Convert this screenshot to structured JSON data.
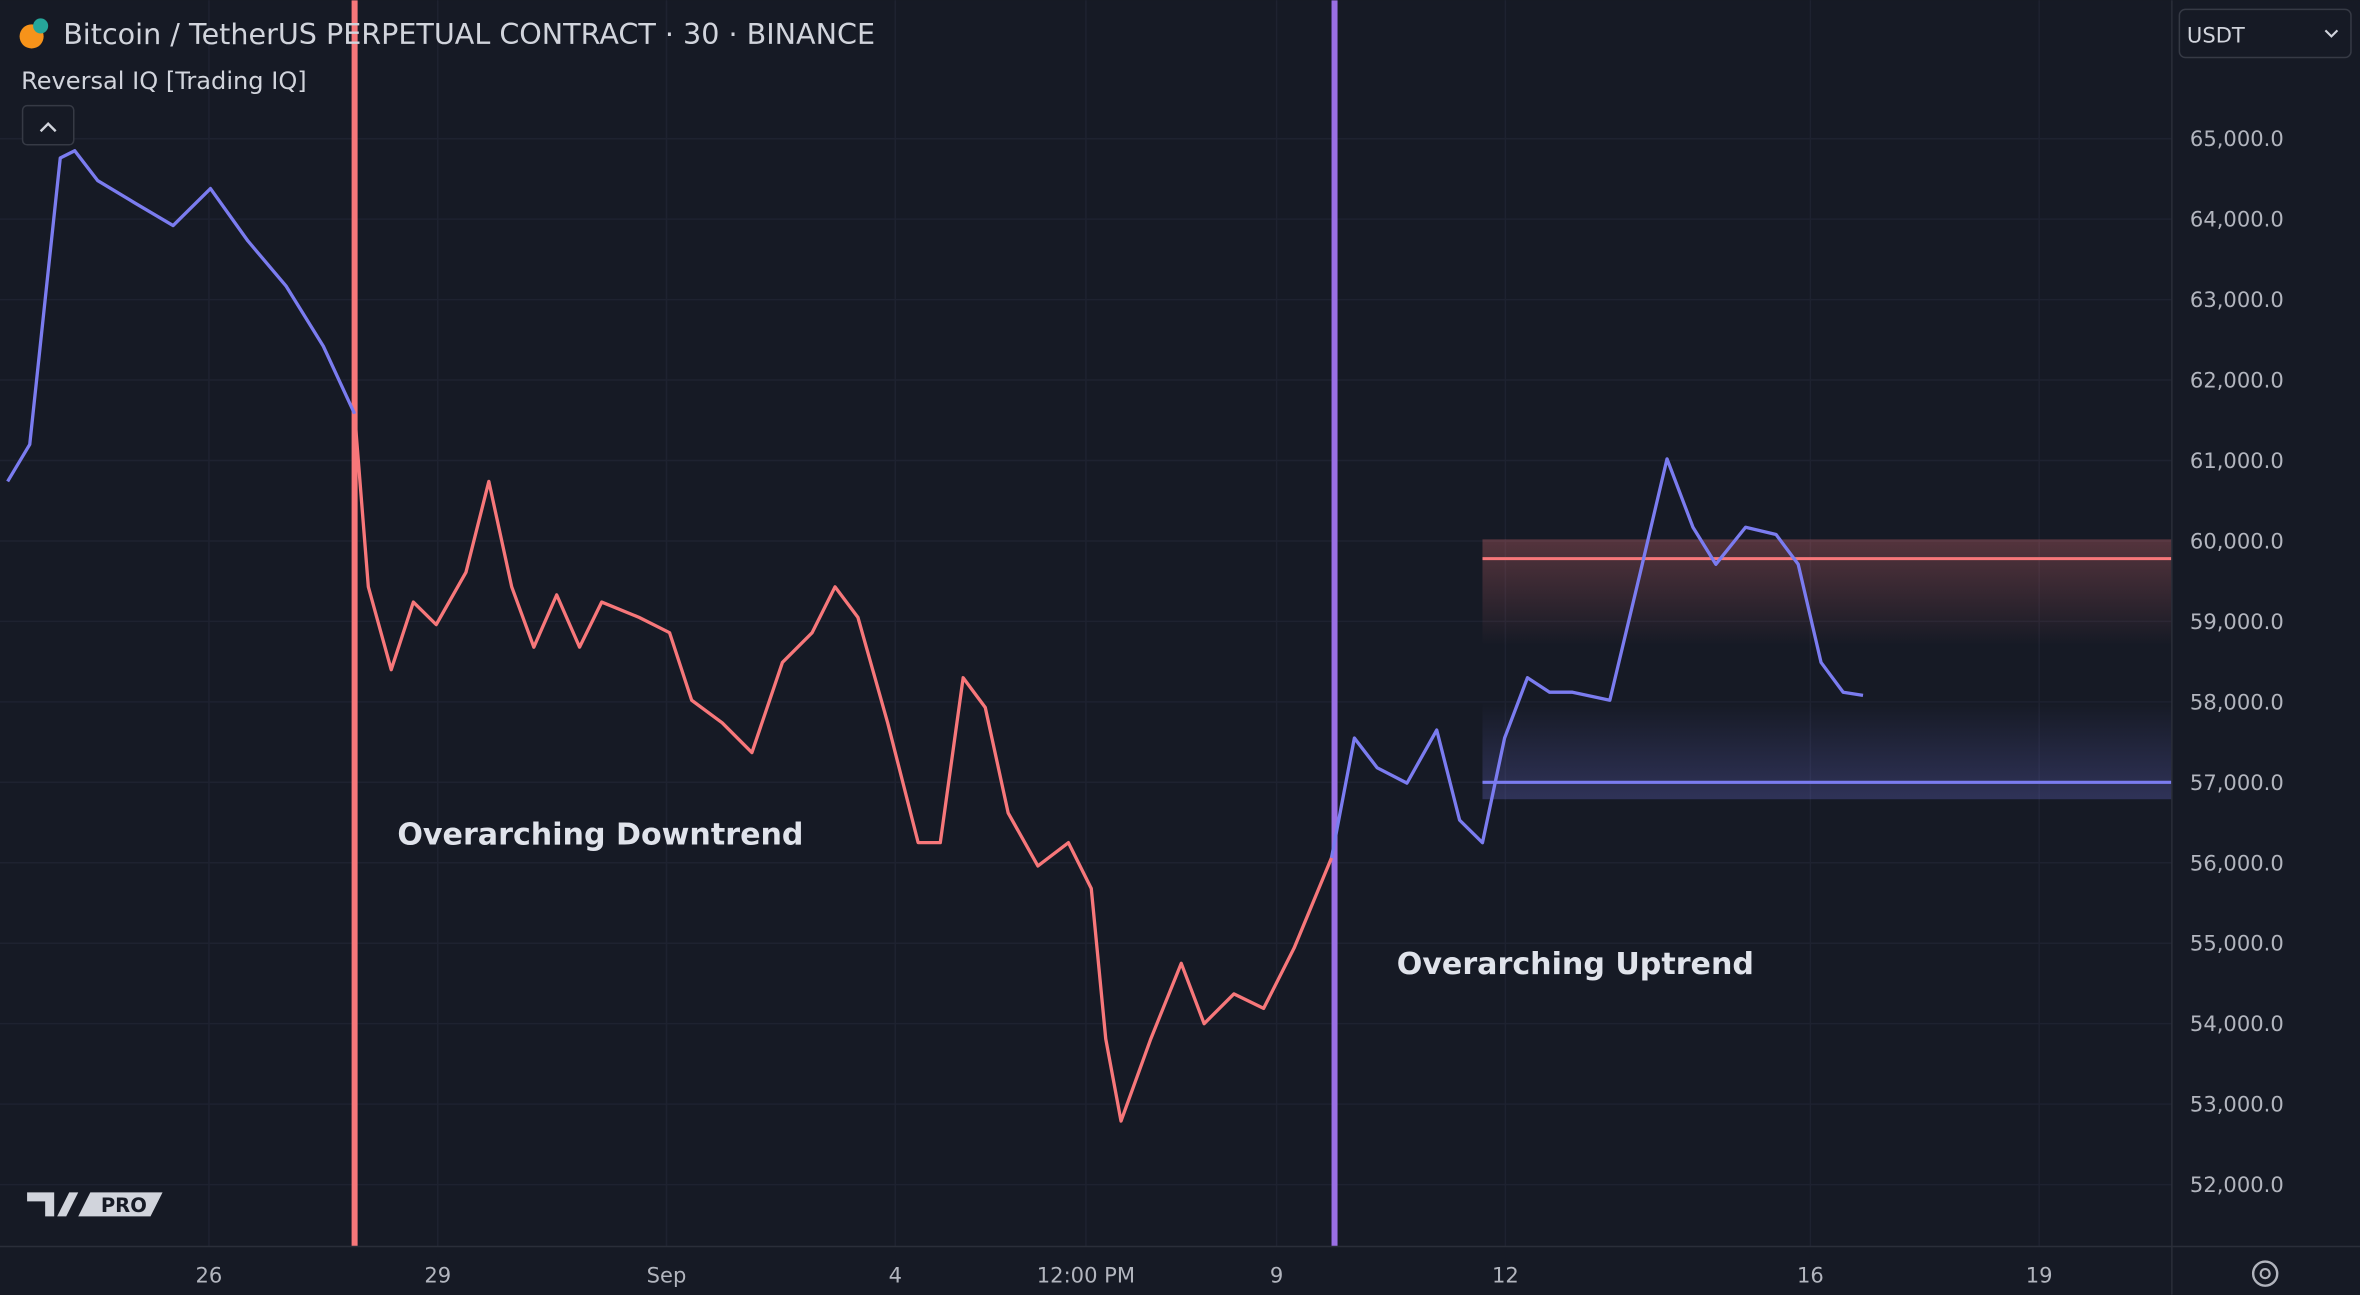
{
  "header": {
    "title": "Bitcoin / TetherUS PERPETUAL CONTRACT · 30 · BINANCE",
    "indicator": "Reversal IQ [Trading IQ]",
    "currency": "USDT",
    "badge": "PRO"
  },
  "chart_data": {
    "type": "line",
    "annotations": [
      "Overarching Downtrend",
      "Overarching Uptrend"
    ],
    "x": [
      23.36,
      23.65,
      23.85,
      24.05,
      24.24,
      24.54,
      25.03,
      25.53,
      26.02,
      26.51,
      27.01,
      27.5,
      27.91,
      28.09,
      28.39,
      28.68,
      28.98,
      29.37,
      29.67,
      29.97,
      30.26,
      30.56,
      30.86,
      31.15,
      31.64,
      32.04,
      32.33,
      32.73,
      33.12,
      33.52,
      33.91,
      34.21,
      34.51,
      34.9,
      35.3,
      35.59,
      35.89,
      36.18,
      36.48,
      36.87,
      37.27,
      37.57,
      37.76,
      37.96,
      38.35,
      38.75,
      39.05,
      39.44,
      39.83,
      40.23,
      40.72,
      41.02,
      41.32,
      41.71,
      42.1,
      42.4,
      42.7,
      42.99,
      43.29,
      43.58,
      43.88,
      44.37,
      44.77,
      45.12,
      45.46,
      45.76,
      46.15,
      46.55,
      46.84,
      47.14,
      47.43,
      47.69
    ],
    "series": [
      {
        "color": "#7b7cf0",
        "values": [
          60740,
          61200,
          62980,
          64760,
          64850,
          64480,
          64200,
          63920,
          64380,
          63730,
          63170,
          62420,
          61580,
          null,
          null,
          null,
          null,
          null,
          null,
          null,
          null,
          null,
          null,
          null,
          null,
          null,
          null,
          null,
          null,
          null,
          null,
          null,
          null,
          null,
          null,
          null,
          null,
          null,
          null,
          null,
          null,
          null,
          null,
          null,
          null,
          null,
          null,
          null,
          null,
          null,
          56060,
          57550,
          57180,
          56990,
          57650,
          56530,
          56250,
          57550,
          58300,
          58120,
          58120,
          58020,
          59610,
          61020,
          60170,
          59710,
          60170,
          60080,
          59710,
          58490,
          58120,
          58080
        ]
      },
      {
        "color": "#f7777a",
        "values": [
          null,
          null,
          null,
          null,
          null,
          null,
          null,
          null,
          null,
          null,
          null,
          null,
          61580,
          59430,
          58400,
          59240,
          58960,
          59610,
          60740,
          59430,
          58680,
          59330,
          58680,
          59240,
          59050,
          58860,
          58020,
          57740,
          57370,
          58490,
          58860,
          59430,
          59050,
          57740,
          56250,
          56250,
          58300,
          57930,
          56620,
          55960,
          56250,
          55680,
          53810,
          52790,
          53810,
          54750,
          54000,
          54370,
          54190,
          54940,
          56060,
          null,
          null,
          null,
          null,
          null,
          null,
          null,
          null,
          null,
          null,
          null,
          null,
          null,
          null,
          null,
          null,
          null,
          null,
          null,
          null,
          null
        ]
      }
    ],
    "vlines": [
      {
        "x": 27.91,
        "color": "#f7777a"
      },
      {
        "x": 40.76,
        "color": "#9a6fe4"
      }
    ],
    "zones": [
      {
        "xstart": 42.7,
        "from": 60020,
        "to": 58700,
        "level": 59780,
        "color": "#f7777a"
      },
      {
        "xstart": 42.7,
        "from": 58000,
        "to": 56790,
        "level": 57000,
        "color": "#7b7cf0"
      }
    ],
    "xlim": [
      23.26,
      51.74
    ],
    "ylim": [
      51230,
      66720
    ],
    "xticks": [
      26,
      29,
      {
        "value": 32,
        "label": "Sep"
      },
      {
        "value": 35,
        "label": "4"
      },
      {
        "value": 37.5,
        "label": "12:00 PM"
      },
      {
        "value": 40,
        "label": "9"
      },
      {
        "value": 43,
        "label": "12"
      },
      {
        "value": 47,
        "label": "16"
      },
      {
        "value": 50,
        "label": "19"
      }
    ],
    "yticks": [
      {
        "value": 52000,
        "label": "52,000.0"
      },
      {
        "value": 53000,
        "label": "53,000.0"
      },
      {
        "value": 54000,
        "label": "54,000.0"
      },
      {
        "value": 55000,
        "label": "55,000.0"
      },
      {
        "value": 56000,
        "label": "56,000.0"
      },
      {
        "value": 57000,
        "label": "57,000.0"
      },
      {
        "value": 58000,
        "label": "58,000.0"
      },
      {
        "value": 59000,
        "label": "59,000.0"
      },
      {
        "value": 60000,
        "label": "60,000.0"
      },
      {
        "value": 61000,
        "label": "61,000.0"
      },
      {
        "value": 62000,
        "label": "62,000.0"
      },
      {
        "value": 63000,
        "label": "63,000.0"
      },
      {
        "value": 64000,
        "label": "64,000.0"
      },
      {
        "value": 65000,
        "label": "65,000.0"
      }
    ],
    "grid": true
  }
}
